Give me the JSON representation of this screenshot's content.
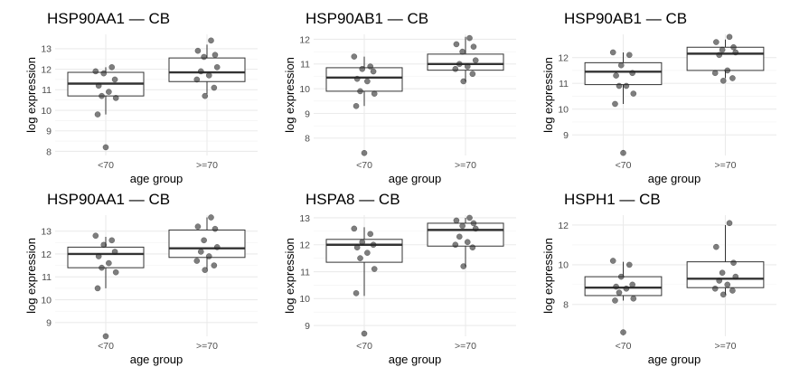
{
  "chart_data": [
    {
      "type": "box",
      "title": "HSP90AA1 — CB",
      "xlabel": "age group",
      "ylabel": "log expression",
      "ylim": [
        7.8,
        13.7
      ],
      "yticks": [
        8,
        9,
        10,
        11,
        12,
        13
      ],
      "categories": [
        "<70",
        ">=70"
      ],
      "boxes": [
        {
          "q1": 10.7,
          "median": 11.3,
          "q3": 11.85,
          "whisker_low": 9.8,
          "whisker_high": 12.1
        },
        {
          "q1": 11.4,
          "median": 11.85,
          "q3": 12.55,
          "whisker_low": 10.8,
          "whisker_high": 13.2
        }
      ],
      "points": [
        [
          11.9,
          12.1,
          11.8,
          11.5,
          11.2,
          10.9,
          10.7,
          10.6,
          9.8,
          8.2
        ],
        [
          13.4,
          12.9,
          12.7,
          12.6,
          12.1,
          11.9,
          11.7,
          11.5,
          11.1,
          10.7
        ]
      ]
    },
    {
      "type": "box",
      "title": "HSP90AB1 — CB",
      "xlabel": "age group",
      "ylabel": "log expression",
      "ylim": [
        7.3,
        12.2
      ],
      "yticks": [
        8,
        9,
        10,
        11,
        12
      ],
      "categories": [
        "<70",
        ">=70"
      ],
      "boxes": [
        {
          "q1": 9.9,
          "median": 10.45,
          "q3": 10.85,
          "whisker_low": 9.3,
          "whisker_high": 11.3
        },
        {
          "q1": 10.75,
          "median": 11.0,
          "q3": 11.4,
          "whisker_low": 10.3,
          "whisker_high": 12.1
        }
      ],
      "points": [
        [
          11.3,
          10.9,
          10.8,
          10.7,
          10.4,
          10.3,
          9.9,
          9.8,
          9.3,
          7.4
        ],
        [
          12.05,
          11.8,
          11.7,
          11.5,
          11.15,
          11.0,
          10.9,
          10.8,
          10.6,
          10.3
        ]
      ]
    },
    {
      "type": "box",
      "title": "HSP90AB1 — CB",
      "xlabel": "age group",
      "ylabel": "log expression",
      "ylim": [
        8.2,
        12.9
      ],
      "yticks": [
        9,
        10,
        11,
        12
      ],
      "categories": [
        "<70",
        ">=70"
      ],
      "boxes": [
        {
          "q1": 10.95,
          "median": 11.45,
          "q3": 11.8,
          "whisker_low": 10.2,
          "whisker_high": 12.2
        },
        {
          "q1": 11.5,
          "median": 12.15,
          "q3": 12.4,
          "whisker_low": 11.2,
          "whisker_high": 12.7
        }
      ],
      "points": [
        [
          12.2,
          12.1,
          11.7,
          11.4,
          11.3,
          10.9,
          10.9,
          10.6,
          10.2,
          8.3
        ],
        [
          12.8,
          12.6,
          12.4,
          12.3,
          12.2,
          12.1,
          11.5,
          11.4,
          11.2,
          11.1
        ]
      ]
    },
    {
      "type": "box",
      "title": "HSP90AA1 — CB",
      "xlabel": "age group",
      "ylabel": "log expression",
      "ylim": [
        8.4,
        13.7
      ],
      "yticks": [
        9,
        10,
        11,
        12,
        13
      ],
      "categories": [
        "<70",
        ">=70"
      ],
      "boxes": [
        {
          "q1": 11.4,
          "median": 12.0,
          "q3": 12.3,
          "whisker_low": 10.5,
          "whisker_high": 12.75
        },
        {
          "q1": 11.85,
          "median": 12.25,
          "q3": 13.05,
          "whisker_low": 11.35,
          "whisker_high": 13.6
        }
      ],
      "points": [
        [
          12.8,
          12.6,
          12.4,
          12.1,
          11.9,
          11.6,
          11.4,
          11.2,
          10.5,
          8.4
        ],
        [
          13.6,
          13.2,
          13.1,
          12.6,
          12.3,
          12.1,
          11.9,
          11.7,
          11.5,
          11.3
        ]
      ]
    },
    {
      "type": "box",
      "title": "HSPA8 — CB",
      "xlabel": "age group",
      "ylabel": "log expression",
      "ylim": [
        8.6,
        13.1
      ],
      "yticks": [
        9,
        10,
        11,
        12,
        13
      ],
      "categories": [
        "<70",
        ">=70"
      ],
      "boxes": [
        {
          "q1": 11.35,
          "median": 12.0,
          "q3": 12.2,
          "whisker_low": 10.1,
          "whisker_high": 12.65
        },
        {
          "q1": 11.95,
          "median": 12.55,
          "q3": 12.8,
          "whisker_low": 11.2,
          "whisker_high": 13.0
        }
      ],
      "points": [
        [
          12.6,
          12.4,
          12.1,
          12.0,
          11.9,
          11.7,
          11.5,
          11.1,
          10.2,
          8.7
        ],
        [
          13.0,
          12.9,
          12.8,
          12.7,
          12.6,
          12.3,
          12.1,
          12.0,
          11.9,
          11.2
        ]
      ]
    },
    {
      "type": "box",
      "title": "HSPH1 — CB",
      "xlabel": "age group",
      "ylabel": "log expression",
      "ylim": [
        6.4,
        12.5
      ],
      "yticks": [
        8,
        10,
        12
      ],
      "categories": [
        "<70",
        ">=70"
      ],
      "boxes": [
        {
          "q1": 8.45,
          "median": 8.85,
          "q3": 9.4,
          "whisker_low": 8.2,
          "whisker_high": 10.15
        },
        {
          "q1": 8.85,
          "median": 9.3,
          "q3": 10.15,
          "whisker_low": 8.5,
          "whisker_high": 12.0
        }
      ],
      "points": [
        [
          10.2,
          10.0,
          9.4,
          9.0,
          8.9,
          8.8,
          8.6,
          8.3,
          8.2,
          6.6
        ],
        [
          12.1,
          10.9,
          10.1,
          9.6,
          9.4,
          9.2,
          9.0,
          8.8,
          8.7,
          8.5
        ]
      ]
    }
  ]
}
